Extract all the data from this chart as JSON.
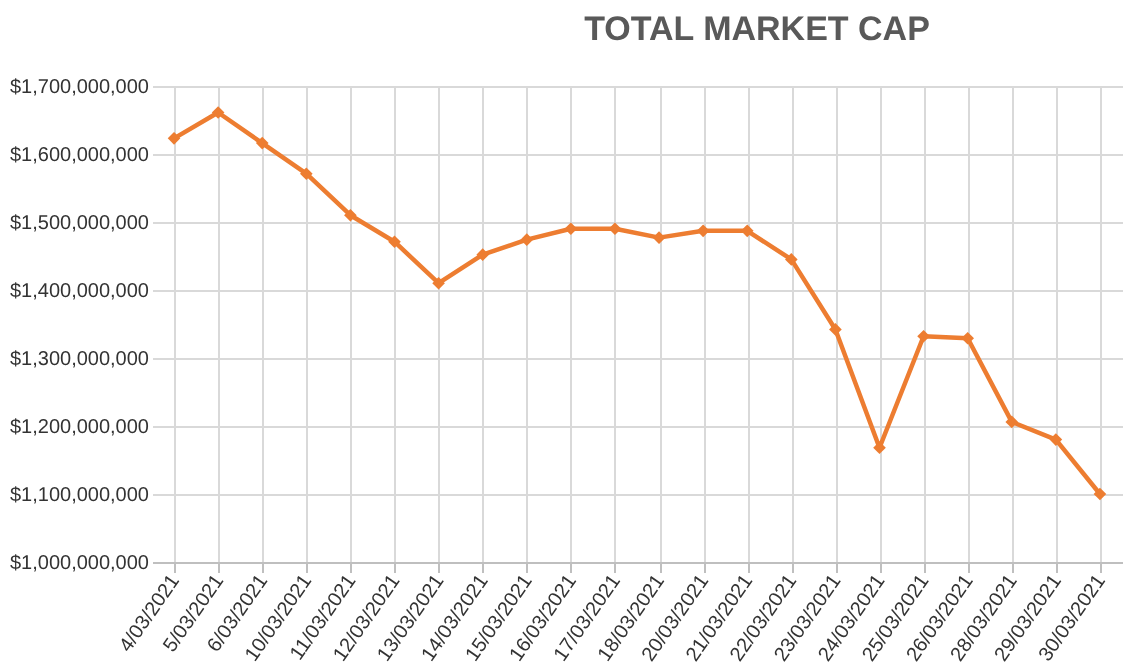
{
  "chart_data": {
    "type": "line",
    "title": "TOTAL MARKET CAP",
    "categories": [
      "4/03/2021",
      "5/03/2021",
      "6/03/2021",
      "10/03/2021",
      "11/03/2021",
      "12/03/2021",
      "13/03/2021",
      "14/03/2021",
      "15/03/2021",
      "16/03/2021",
      "17/03/2021",
      "18/03/2021",
      "20/03/2021",
      "21/03/2021",
      "22/03/2021",
      "23/03/2021",
      "24/03/2021",
      "25/03/2021",
      "26/03/2021",
      "28/03/2021",
      "29/03/2021",
      "30/03/2021"
    ],
    "series": [
      {
        "color": "#ed7d31",
        "values": [
          1623000000,
          1661000000,
          1616000000,
          1571000000,
          1510000000,
          1471000000,
          1410000000,
          1452000000,
          1474000000,
          1490000000,
          1490000000,
          1477000000,
          1487000000,
          1487000000,
          1445000000,
          1342000000,
          1168000000,
          1332000000,
          1329000000,
          1206000000,
          1180000000,
          1100000000
        ]
      }
    ],
    "ylim": [
      1000000000,
      1700000000
    ],
    "yticks": [
      {
        "value": 1000000000,
        "label": "$1,000,000,000"
      },
      {
        "value": 1100000000,
        "label": "$1,100,000,000"
      },
      {
        "value": 1200000000,
        "label": "$1,200,000,000"
      },
      {
        "value": 1300000000,
        "label": "$1,300,000,000"
      },
      {
        "value": 1400000000,
        "label": "$1,400,000,000"
      },
      {
        "value": 1500000000,
        "label": "$1,500,000,000"
      },
      {
        "value": 1600000000,
        "label": "$1,600,000,000"
      },
      {
        "value": 1700000000,
        "label": "$1,700,000,000"
      }
    ],
    "grid": true,
    "marker": "diamond",
    "line_style": "solid",
    "legend": false
  }
}
